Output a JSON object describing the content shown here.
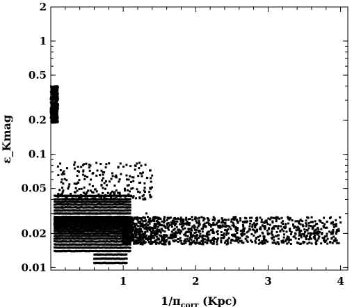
{
  "chart_data": {
    "type": "scatter",
    "xlabel_main": "1/π",
    "xlabel_sub": "corr",
    "xlabel_tail": " (Kpc)",
    "ylabel": "ε_Kmag",
    "x_scale": "linear",
    "y_scale": "log",
    "xlim": [
      0.0,
      4.1
    ],
    "ylim": [
      0.0095,
      2.0
    ],
    "x_ticks": [
      1,
      2,
      3,
      4
    ],
    "x_tick_labels": [
      "1",
      "2",
      "3",
      "4"
    ],
    "y_ticks": [
      0.01,
      0.02,
      0.05,
      0.1,
      0.2,
      0.5,
      1,
      2
    ],
    "y_tick_labels": [
      "0.01",
      "0.02",
      "0.05",
      "0.1",
      "0.2",
      "0.5",
      "1",
      "2"
    ],
    "grid": false,
    "legend": "none",
    "marker_color": "#000000",
    "groups": [
      {
        "x_range": [
          0.0,
          0.1
        ],
        "y_range": [
          0.19,
          0.4
        ],
        "count": 320,
        "spread": "uniform"
      },
      {
        "x_range": [
          0.05,
          1.1
        ],
        "y_levels": [
          0.011,
          0.012,
          0.013,
          0.014,
          0.015,
          0.016,
          0.017,
          0.018,
          0.019,
          0.02,
          0.021,
          0.022,
          0.023,
          0.024,
          0.025,
          0.026,
          0.027,
          0.028,
          0.03,
          0.032,
          0.034,
          0.036,
          0.038,
          0.04,
          0.043
        ],
        "note": "dense horizontal bands"
      },
      {
        "x_range": [
          1.0,
          4.0
        ],
        "y_range": [
          0.016,
          0.028
        ],
        "count": 1400,
        "spread": "decaying"
      },
      {
        "x_range": [
          0.1,
          1.4
        ],
        "y_range": [
          0.04,
          0.085
        ],
        "count": 260,
        "spread": "uniform"
      }
    ],
    "outliers": [
      {
        "x": 0.1,
        "y": 0.078
      },
      {
        "x": 0.33,
        "y": 0.075
      },
      {
        "x": 0.45,
        "y": 0.072
      },
      {
        "x": 0.63,
        "y": 0.084
      },
      {
        "x": 0.72,
        "y": 0.066
      },
      {
        "x": 0.85,
        "y": 0.068
      },
      {
        "x": 1.05,
        "y": 0.06
      },
      {
        "x": 1.32,
        "y": 0.03
      },
      {
        "x": 1.42,
        "y": 0.027
      },
      {
        "x": 2.55,
        "y": 0.028
      },
      {
        "x": 3.9,
        "y": 0.024
      },
      {
        "x": 4.0,
        "y": 0.025
      }
    ]
  }
}
